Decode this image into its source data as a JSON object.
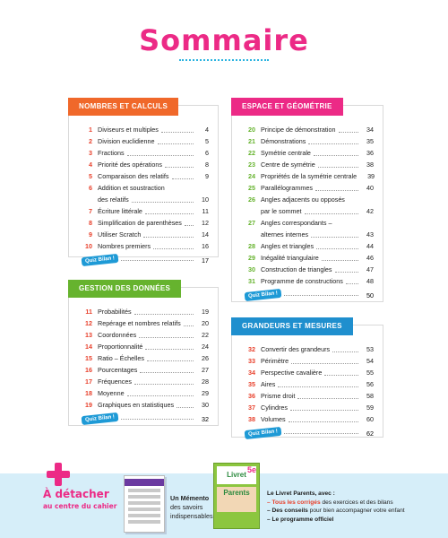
{
  "title": "Sommaire",
  "colors": {
    "title": "#ec2a86",
    "nombres": "#f0682a",
    "espace": "#ec2a86",
    "gestion": "#66b32e",
    "grandeurs": "#1f8fce"
  },
  "quiz_label": "Quiz Bilan !",
  "nombres": {
    "heading": "NOMBRES ET CALCULS",
    "items": [
      {
        "n": "1",
        "t": "Diviseurs et multiples",
        "p": "4"
      },
      {
        "n": "2",
        "t": "Division euclidienne",
        "p": "5"
      },
      {
        "n": "3",
        "t": "Fractions",
        "p": "6"
      },
      {
        "n": "4",
        "t": "Priorité des opérations",
        "p": "8"
      },
      {
        "n": "5",
        "t": "Comparaison des relatifs",
        "p": "9"
      },
      {
        "n": "6",
        "t": "Addition et soustraction",
        "t2": "des relatifs",
        "p": "10"
      },
      {
        "n": "7",
        "t": "Écriture littérale",
        "p": "11"
      },
      {
        "n": "8",
        "t": "Simplification de parenthèses",
        "p": "12"
      },
      {
        "n": "9",
        "t": "Utiliser Scratch",
        "p": "14"
      },
      {
        "n": "10",
        "t": "Nombres premiers",
        "p": "16"
      }
    ],
    "quiz_page": "17"
  },
  "espace": {
    "heading": "ESPACE ET GÉOMÉTRIE",
    "items": [
      {
        "n": "20",
        "t": "Principe de démonstration",
        "p": "34"
      },
      {
        "n": "21",
        "t": "Démonstrations",
        "p": "35"
      },
      {
        "n": "22",
        "t": "Symétrie centrale",
        "p": "36"
      },
      {
        "n": "23",
        "t": "Centre de symétrie",
        "p": "38"
      },
      {
        "n": "24",
        "t": "Propriétés de la symétrie centrale",
        "p": "39"
      },
      {
        "n": "25",
        "t": "Parallélogrammes",
        "p": "40"
      },
      {
        "n": "26",
        "t": "Angles adjacents ou opposés",
        "t2": "par le sommet",
        "p": "42"
      },
      {
        "n": "27",
        "t": "Angles correspondants –",
        "t2": "alternes internes",
        "p": "43"
      },
      {
        "n": "28",
        "t": "Angles et triangles",
        "p": "44"
      },
      {
        "n": "29",
        "t": "Inégalité triangulaire",
        "p": "46"
      },
      {
        "n": "30",
        "t": "Construction de triangles",
        "p": "47"
      },
      {
        "n": "31",
        "t": "Programme de constructions",
        "p": "48"
      }
    ],
    "quiz_page": "50"
  },
  "gestion": {
    "heading": "GESTION DES DONNÉES",
    "items": [
      {
        "n": "11",
        "t": "Probabilités",
        "p": "19"
      },
      {
        "n": "12",
        "t": "Repérage et nombres relatifs",
        "p": "20"
      },
      {
        "n": "13",
        "t": "Coordonnées",
        "p": "22"
      },
      {
        "n": "14",
        "t": "Proportionnalité",
        "p": "24"
      },
      {
        "n": "15",
        "t": "Ratio – Échelles",
        "p": "26"
      },
      {
        "n": "16",
        "t": "Pourcentages",
        "p": "27"
      },
      {
        "n": "17",
        "t": "Fréquences",
        "p": "28"
      },
      {
        "n": "18",
        "t": "Moyenne",
        "p": "29"
      },
      {
        "n": "19",
        "t": "Graphiques en statistiques",
        "p": "30"
      }
    ],
    "quiz_page": "32"
  },
  "grandeurs": {
    "heading": "GRANDEURS ET MESURES",
    "items": [
      {
        "n": "32",
        "t": "Convertir des grandeurs",
        "p": "53"
      },
      {
        "n": "33",
        "t": "Périmètre",
        "p": "54"
      },
      {
        "n": "34",
        "t": "Perspective cavalière",
        "p": "55"
      },
      {
        "n": "35",
        "t": "Aires",
        "p": "56"
      },
      {
        "n": "36",
        "t": "Prisme droit",
        "p": "58"
      },
      {
        "n": "37",
        "t": "Cylindres",
        "p": "59"
      },
      {
        "n": "38",
        "t": "Volumes",
        "p": "60"
      }
    ],
    "quiz_page": "62"
  },
  "footer": {
    "detach_line1": "À détacher",
    "detach_line2": "au centre du cahier",
    "memento_line1": "Un Mémento",
    "memento_line2": "des savoirs",
    "memento_line3": "indispensables",
    "livret_cover_title": "Livret Parents",
    "livret_cover_level": "5e",
    "livret_title": "Le Livret Parents, avec :",
    "livret_item1": "– Tous les corrigés",
    "livret_item1_rest": " des exercices et des bilans",
    "livret_item2": "– Des conseils",
    "livret_item2_rest": " pour bien accompagner votre enfant",
    "livret_item3": "– Le programme officiel"
  }
}
